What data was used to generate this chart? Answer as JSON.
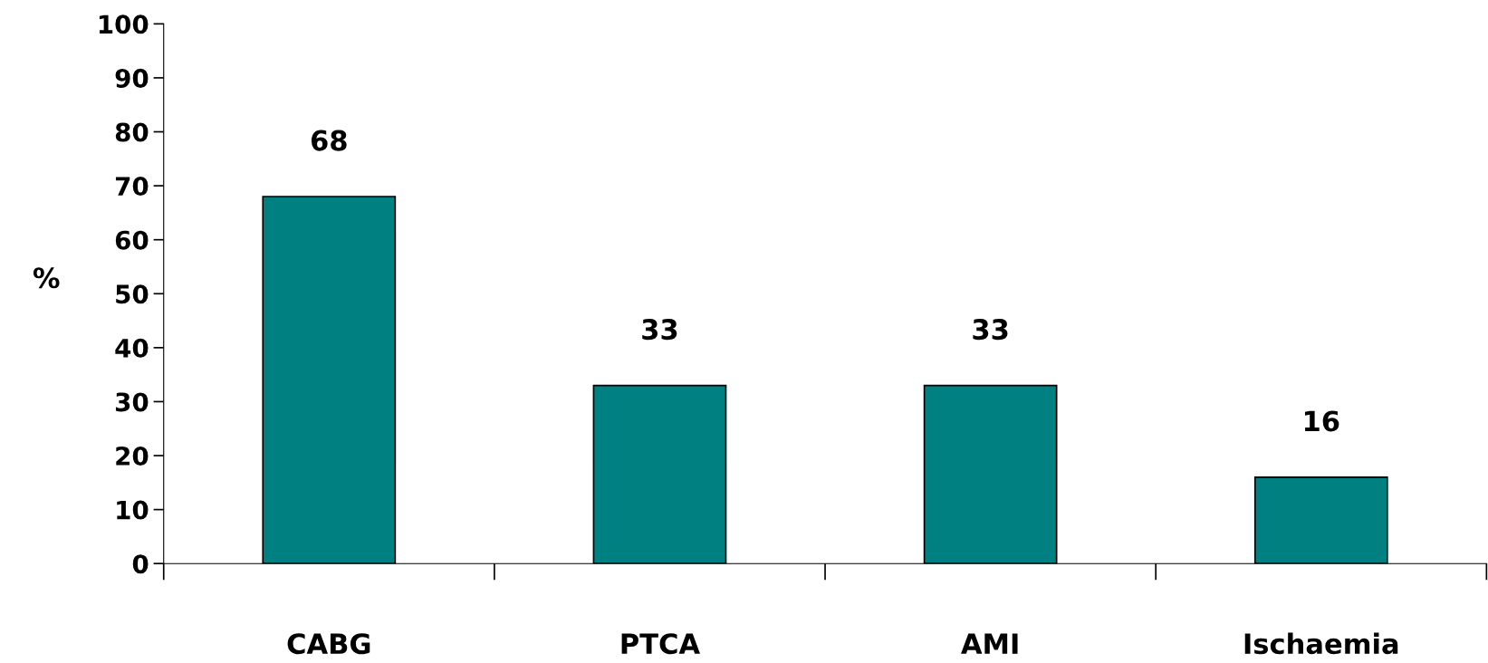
{
  "chart_data": {
    "type": "bar",
    "ylabel": "%",
    "categories": [
      "CABG",
      "PTCA",
      "AMI",
      "Ischaemia"
    ],
    "values": [
      68,
      33,
      33,
      16
    ],
    "color": "#008080",
    "ylim": [
      0,
      100
    ],
    "yticks": [
      0,
      10,
      20,
      30,
      40,
      50,
      60,
      70,
      80,
      90,
      100
    ],
    "data_labels": true,
    "grid": false,
    "legend": false
  }
}
